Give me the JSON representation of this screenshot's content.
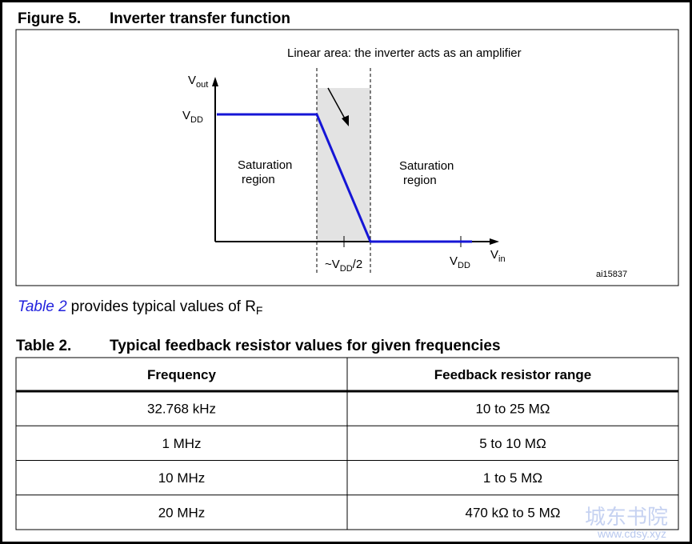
{
  "figure": {
    "label": "Figure 5.",
    "title": "Inverter transfer function",
    "annotation": "Linear area: the inverter acts as an amplifier",
    "y_axis": {
      "main": "V",
      "sub": "out"
    },
    "x_axis": {
      "main": "V",
      "sub": "in"
    },
    "y_level": {
      "main": "V",
      "sub": "DD"
    },
    "x_mid": {
      "main": "~V",
      "sub": "DD",
      "suffix": "/2"
    },
    "x_end": {
      "main": "V",
      "sub": "DD"
    },
    "left_region": [
      "Saturation",
      "region"
    ],
    "right_region": [
      "Saturation",
      "region"
    ],
    "id": "ai15837"
  },
  "text": {
    "link": "Table 2",
    "body": "provides typical values of R",
    "sub": "F"
  },
  "table": {
    "label": "Table 2.",
    "title": "Typical feedback resistor values for given frequencies",
    "header": [
      "Frequency",
      "Feedback resistor range"
    ],
    "rows": [
      [
        "32.768 kHz",
        "10 to 25 MΩ"
      ],
      [
        "1 MHz",
        "5 to 10 MΩ"
      ],
      [
        "10 MHz",
        "1 to 5 MΩ"
      ],
      [
        "20 MHz",
        "470 kΩ to 5 MΩ"
      ]
    ]
  },
  "watermark": {
    "name": "城东书院",
    "url": "www.cdsy.xyz"
  }
}
